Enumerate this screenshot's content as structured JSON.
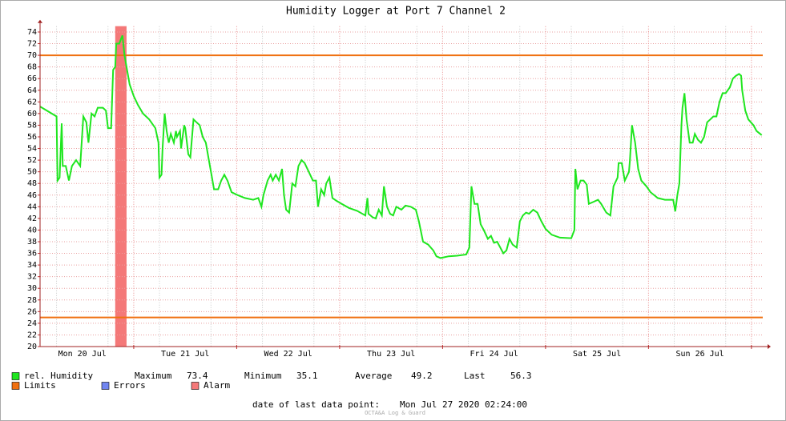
{
  "chart_data": {
    "type": "line",
    "title": "Humidity Logger at Port 7 Channel 2",
    "x": [
      0.09,
      0.25,
      0.26,
      0.28,
      0.3,
      0.31,
      0.34,
      0.37,
      0.4,
      0.44,
      0.48,
      0.51,
      0.54,
      0.56,
      0.59,
      0.62,
      0.65,
      0.7,
      0.73,
      0.75,
      0.78,
      0.8,
      0.82,
      0.83,
      0.86,
      0.87,
      0.89,
      0.91,
      0.93,
      0.96,
      1.0,
      1.04,
      1.09,
      1.15,
      1.21,
      1.24,
      1.25,
      1.27,
      1.28,
      1.3,
      1.32,
      1.34,
      1.36,
      1.39,
      1.41,
      1.42,
      1.45,
      1.46,
      1.49,
      1.5,
      1.53,
      1.55,
      1.58,
      1.61,
      1.64,
      1.67,
      1.7,
      1.73,
      1.76,
      1.78,
      1.82,
      1.85,
      1.88,
      1.91,
      1.95,
      2.01,
      2.08,
      2.16,
      2.21,
      2.24,
      2.26,
      2.3,
      2.33,
      2.35,
      2.38,
      2.41,
      2.44,
      2.46,
      2.48,
      2.51,
      2.54,
      2.57,
      2.6,
      2.63,
      2.66,
      2.7,
      2.74,
      2.77,
      2.79,
      2.82,
      2.85,
      2.87,
      2.9,
      2.93,
      2.97,
      3.02,
      3.09,
      3.17,
      3.25,
      3.27,
      3.28,
      3.32,
      3.35,
      3.38,
      3.41,
      3.43,
      3.46,
      3.49,
      3.52,
      3.55,
      3.6,
      3.64,
      3.69,
      3.74,
      3.77,
      3.81,
      3.86,
      3.91,
      3.94,
      3.98,
      4.06,
      4.14,
      4.23,
      4.26,
      4.28,
      4.31,
      4.34,
      4.37,
      4.4,
      4.44,
      4.47,
      4.5,
      4.53,
      4.56,
      4.59,
      4.62,
      4.65,
      4.68,
      4.72,
      4.75,
      4.78,
      4.81,
      4.84,
      4.88,
      4.92,
      4.96,
      5.0,
      5.06,
      5.14,
      5.25,
      5.28,
      5.29,
      5.31,
      5.34,
      5.37,
      5.4,
      5.42,
      5.46,
      5.51,
      5.54,
      5.59,
      5.63,
      5.66,
      5.7,
      5.71,
      5.74,
      5.77,
      5.81,
      5.82,
      5.84,
      5.87,
      5.9,
      5.93,
      5.98,
      6.02,
      6.09,
      6.16,
      6.24,
      6.26,
      6.28,
      6.3,
      6.32,
      6.33,
      6.35,
      6.37,
      6.4,
      6.43,
      6.45,
      6.48,
      6.51,
      6.54,
      6.57,
      6.6,
      6.63,
      6.66,
      6.69,
      6.72,
      6.75,
      6.79,
      6.82,
      6.85,
      6.88,
      6.9,
      6.91,
      6.94,
      6.97,
      7.02,
      7.05,
      7.1
    ],
    "series": [
      {
        "name": "rel. Humidity",
        "color": "#1fe61f",
        "values": [
          61.2,
          59.5,
          48.5,
          49,
          58.3,
          51,
          51,
          48.5,
          51,
          52,
          51,
          59.5,
          58.5,
          55,
          60,
          59.5,
          61,
          61,
          60.5,
          57.5,
          57.5,
          67.5,
          68,
          72,
          72,
          72.5,
          73.4,
          70,
          68,
          65,
          63,
          61.5,
          60,
          59,
          57.5,
          55,
          49,
          49.5,
          54,
          60,
          57,
          55,
          56.5,
          55,
          57,
          56,
          57,
          54,
          58,
          57.5,
          53,
          52.5,
          59,
          58.5,
          58,
          56,
          55,
          52,
          49,
          47,
          47,
          48.5,
          49.5,
          48.5,
          46.5,
          46,
          45.5,
          45.2,
          45.5,
          44,
          46,
          48.5,
          49.5,
          48.5,
          49.5,
          48.5,
          50.5,
          46,
          43.5,
          43,
          48,
          47.5,
          51,
          52,
          51.5,
          50,
          48.5,
          48.5,
          44,
          47,
          46,
          48,
          49,
          45.5,
          45,
          44.5,
          43.8,
          43.3,
          42.5,
          45.5,
          42.8,
          42.2,
          42,
          43.5,
          42.5,
          47.5,
          44,
          42.8,
          42.5,
          44,
          43.5,
          44.2,
          44,
          43.5,
          41.5,
          38,
          37.5,
          36.5,
          35.5,
          35.2,
          35.5,
          35.6,
          35.8,
          37,
          47.5,
          44.5,
          44.5,
          41,
          40,
          38.5,
          39,
          37.8,
          38,
          37,
          36,
          36.5,
          38.5,
          37.5,
          37,
          41.5,
          42.5,
          43,
          42.8,
          43.5,
          43,
          41.5,
          40.2,
          39.2,
          38.7,
          38.6,
          40,
          50.5,
          47,
          48.5,
          48.5,
          47.8,
          44.5,
          44.8,
          45.2,
          44.5,
          43,
          42.5,
          47.5,
          49,
          51.5,
          51.5,
          48.5,
          50,
          52,
          58,
          55,
          50.5,
          48.5,
          47.5,
          46.5,
          45.5,
          45.2,
          45.2,
          43.2,
          46,
          48,
          58,
          61,
          63.5,
          59,
          55,
          55,
          56.5,
          55.5,
          55,
          56,
          58.5,
          59,
          59.5,
          59.5,
          62,
          63.5,
          63.5,
          64.5,
          66,
          66.5,
          66.8,
          66.5,
          64,
          60.5,
          59,
          58,
          57,
          56.3
        ]
      }
    ],
    "xlim": [
      0.09,
      7.11
    ],
    "xticks": [
      {
        "value": 0.5,
        "label": "Mon 20 Jul"
      },
      {
        "value": 1.5,
        "label": "Tue 21 Jul"
      },
      {
        "value": 2.5,
        "label": "Wed 22 Jul"
      },
      {
        "value": 3.5,
        "label": "Thu 23 Jul"
      },
      {
        "value": 4.5,
        "label": "Fri 24 Jul"
      },
      {
        "value": 5.5,
        "label": "Sat 25 Jul"
      },
      {
        "value": 6.5,
        "label": "Sun 26 Jul"
      }
    ],
    "ylim": [
      20,
      75
    ],
    "yticks": [
      20,
      22,
      24,
      26,
      28,
      30,
      32,
      34,
      36,
      38,
      40,
      42,
      44,
      46,
      48,
      50,
      52,
      54,
      56,
      58,
      60,
      62,
      64,
      66,
      68,
      70,
      72,
      74
    ],
    "grid": true,
    "limits": {
      "name": "Limits",
      "color": "#f07010",
      "values": [
        25,
        70
      ]
    },
    "errors": {
      "name": "Errors",
      "color": "#7085f0"
    },
    "alarm": {
      "name": "Alarm",
      "color": "#f47878",
      "ranges": [
        [
          0.82,
          0.93
        ]
      ]
    },
    "stats": [
      {
        "label": "Maximum",
        "value": 73.4
      },
      {
        "label": "Minimum",
        "value": 35.1
      },
      {
        "label": "Average",
        "value": 49.2
      },
      {
        "label": "Last",
        "value": 56.3
      }
    ],
    "footer": {
      "label": "date of last data point:",
      "value": "Mon Jul 27 2020 02:24:00"
    },
    "credit": "OCTA&A Log & Guard"
  }
}
